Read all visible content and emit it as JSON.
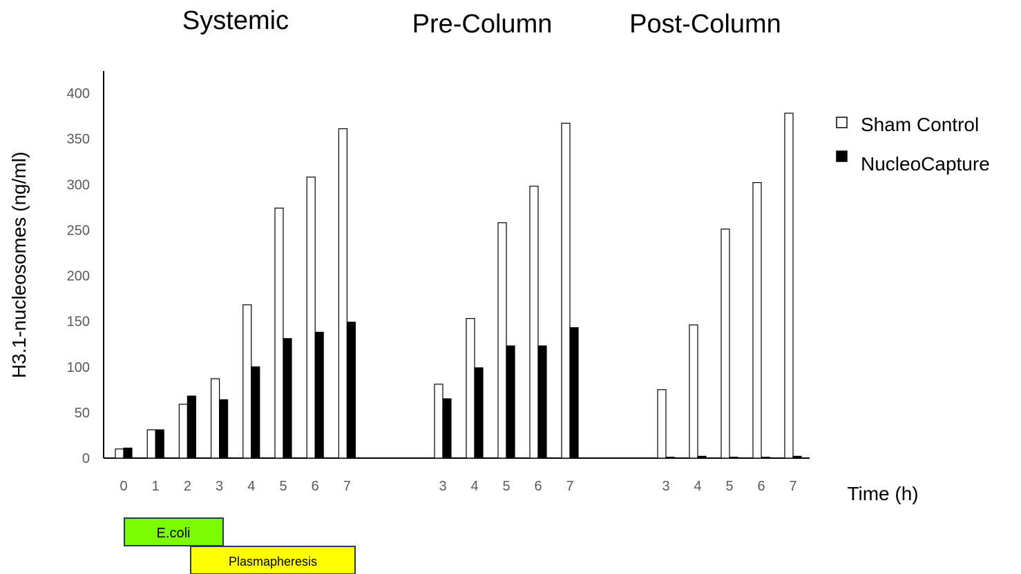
{
  "chart_data": {
    "type": "bar",
    "ylabel": "H3.1-nucleosomes (ng/ml)",
    "xlabel": "Time (h)",
    "ylim": [
      0,
      400
    ],
    "yticks": [
      "0",
      "50",
      "100",
      "150",
      "200",
      "250",
      "300",
      "350",
      "400"
    ],
    "grid": false,
    "legend_position": "right",
    "legend": [
      {
        "name": "Sham Control",
        "color": "#ffffff"
      },
      {
        "name": "NucleoCapture",
        "color": "#000000"
      }
    ],
    "groups": [
      {
        "title": "Systemic",
        "categories": [
          "0",
          "1",
          "2",
          "3",
          "4",
          "5",
          "6",
          "7"
        ],
        "series": [
          {
            "name": "Sham Control",
            "values": [
              10,
              31,
              59,
              87,
              168,
              274,
              308,
              361
            ]
          },
          {
            "name": "NucleoCapture",
            "values": [
              11,
              31,
              68,
              64,
              100,
              131,
              138,
              149
            ]
          }
        ]
      },
      {
        "title": "Pre-Column",
        "categories": [
          "3",
          "4",
          "5",
          "6",
          "7"
        ],
        "series": [
          {
            "name": "Sham Control",
            "values": [
              81,
              153,
              258,
              298,
              367
            ]
          },
          {
            "name": "NucleoCapture",
            "values": [
              65,
              99,
              123,
              123,
              143
            ]
          }
        ]
      },
      {
        "title": "Post-Column",
        "categories": [
          "3",
          "4",
          "5",
          "6",
          "7"
        ],
        "series": [
          {
            "name": "Sham Control",
            "values": [
              75,
              146,
              251,
              302,
              378
            ]
          },
          {
            "name": "NucleoCapture",
            "values": [
              1,
              2,
              1,
              1,
              2
            ]
          }
        ]
      }
    ],
    "annotations": [
      {
        "label": "E.coli",
        "color": "#7cfc00",
        "from": "0",
        "to": "3"
      },
      {
        "label": "Plasmapheresis",
        "color": "#ffff00",
        "from": "2",
        "to": "7"
      }
    ]
  }
}
